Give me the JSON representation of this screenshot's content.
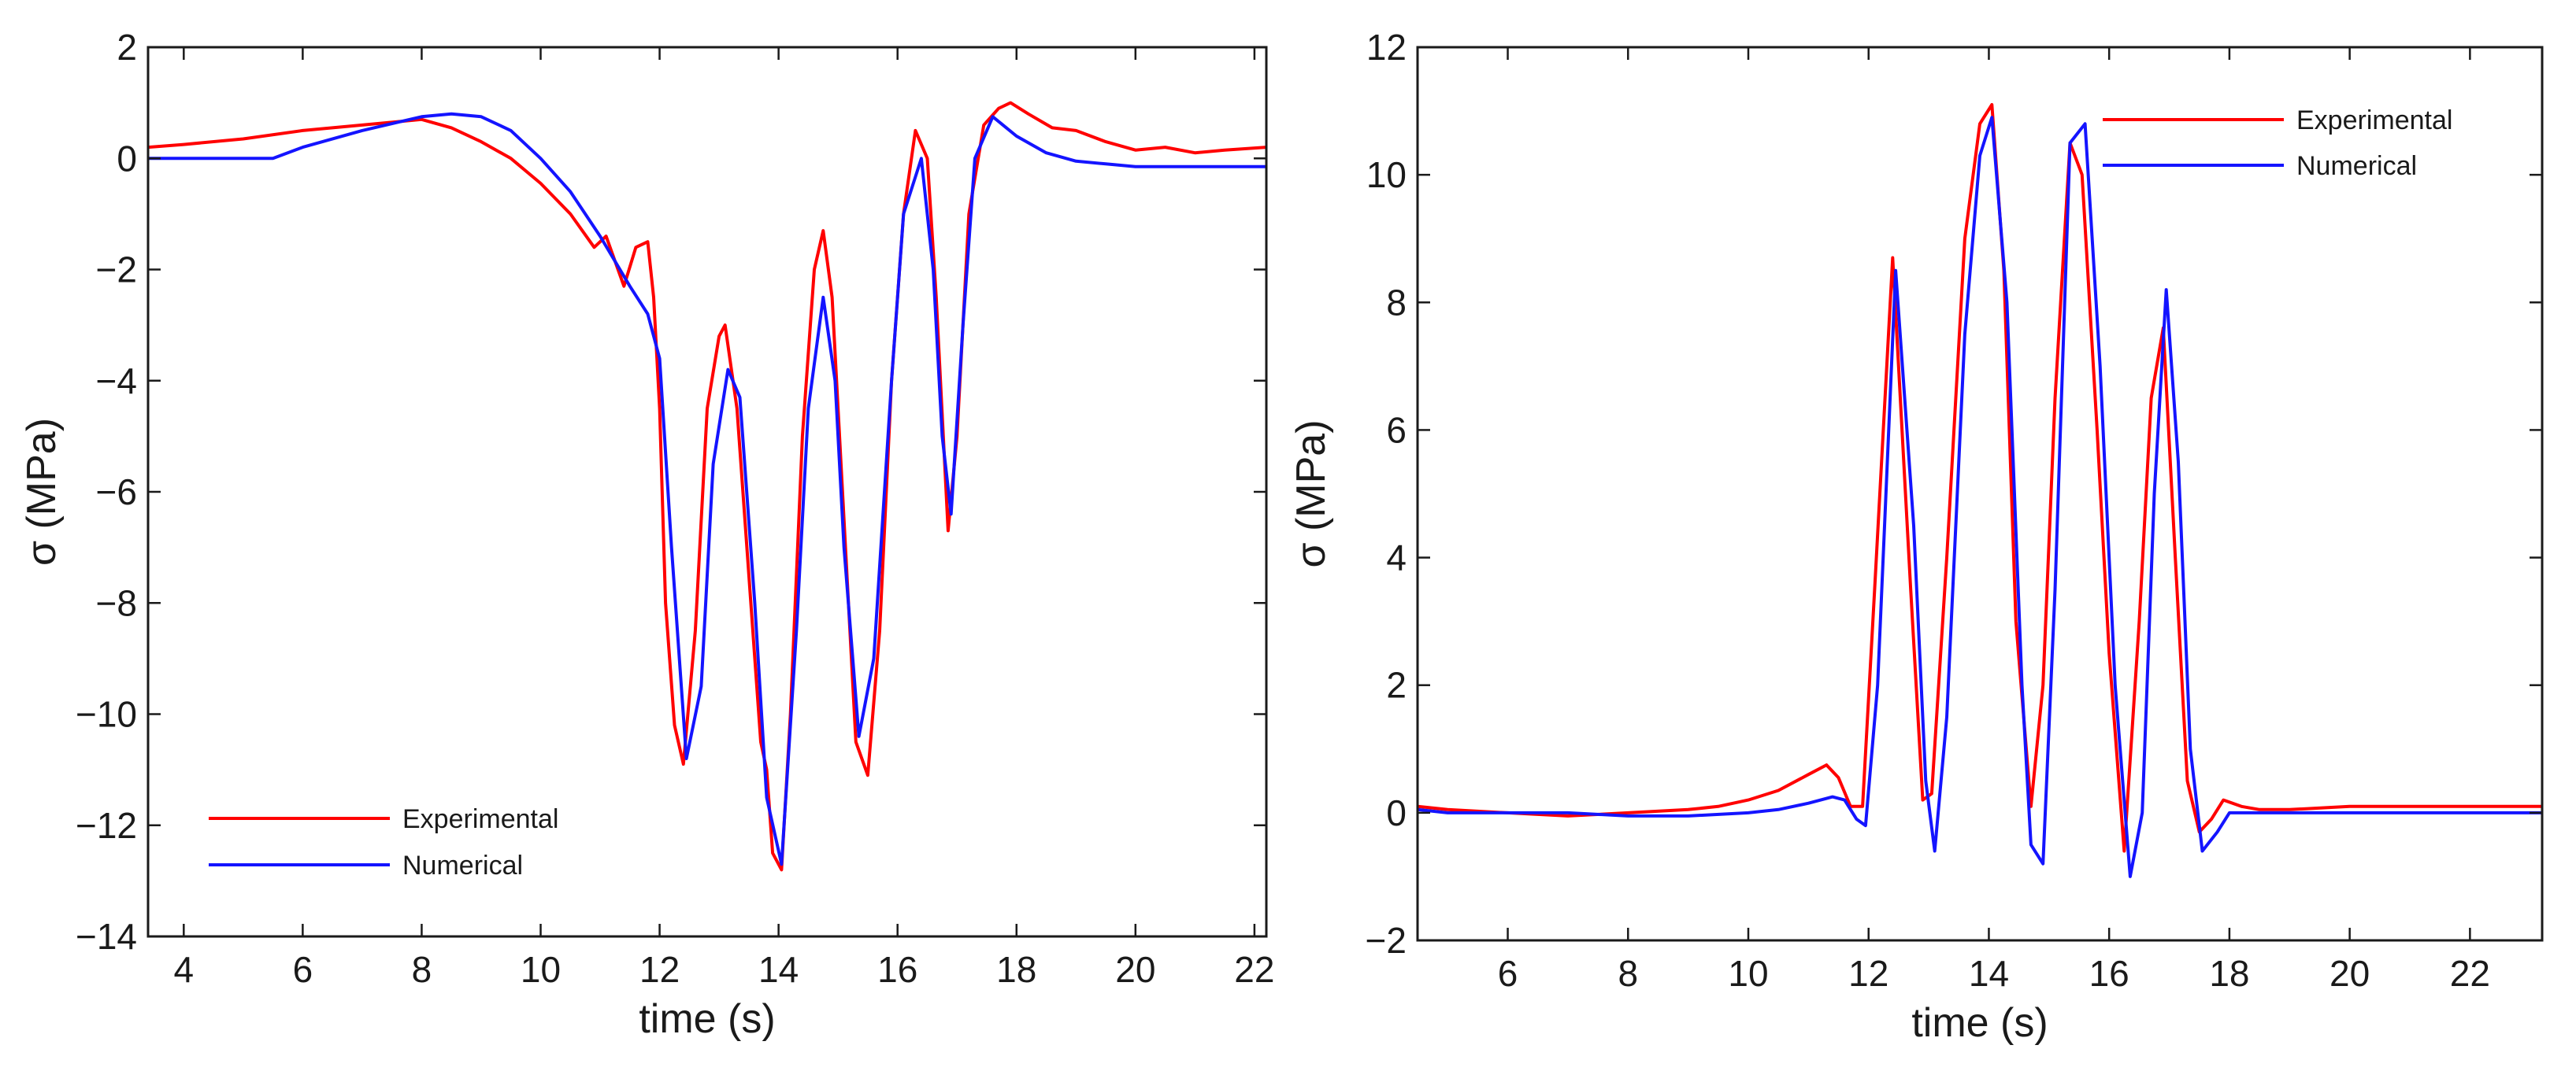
{
  "colors": {
    "experimental": "#ff0000",
    "numerical": "#1414ff"
  },
  "chart_data": [
    {
      "type": "line",
      "xlabel": "time (s)",
      "ylabel": "σ (MPa)",
      "xlim": [
        3.4,
        22.2
      ],
      "ylim": [
        -14,
        2
      ],
      "xticks": [
        4,
        6,
        8,
        10,
        12,
        14,
        16,
        18,
        20,
        22
      ],
      "yticks": [
        -14,
        -12,
        -10,
        -8,
        -6,
        -4,
        -2,
        0,
        2
      ],
      "legend_position": "bottom-left",
      "series": [
        {
          "name": "Experimental",
          "color": "#ff0000",
          "x": [
            3.4,
            4,
            5,
            6,
            7,
            8,
            8.5,
            9,
            9.5,
            10,
            10.5,
            10.9,
            11.1,
            11.4,
            11.6,
            11.8,
            11.9,
            12.0,
            12.1,
            12.25,
            12.4,
            12.6,
            12.8,
            13.0,
            13.1,
            13.3,
            13.5,
            13.7,
            13.8,
            13.9,
            14.05,
            14.2,
            14.4,
            14.6,
            14.75,
            14.9,
            15.1,
            15.3,
            15.5,
            15.7,
            15.9,
            16.1,
            16.3,
            16.5,
            16.65,
            16.85,
            17.0,
            17.2,
            17.45,
            17.7,
            17.9,
            18.2,
            18.6,
            19.0,
            19.5,
            20,
            20.5,
            21,
            21.5,
            22.2
          ],
          "y": [
            0.2,
            0.25,
            0.35,
            0.5,
            0.6,
            0.7,
            0.55,
            0.3,
            0.0,
            -0.45,
            -1.0,
            -1.6,
            -1.4,
            -2.3,
            -1.6,
            -1.5,
            -2.5,
            -4.5,
            -8.0,
            -10.2,
            -10.9,
            -8.5,
            -4.5,
            -3.2,
            -3.0,
            -4.5,
            -7.5,
            -10.5,
            -11.0,
            -12.5,
            -12.8,
            -10.0,
            -5.0,
            -2.0,
            -1.3,
            -2.5,
            -6.5,
            -10.5,
            -11.1,
            -8.5,
            -4.0,
            -1.0,
            0.5,
            0.0,
            -2.5,
            -6.7,
            -5.0,
            -1.0,
            0.6,
            0.9,
            1.0,
            0.8,
            0.55,
            0.5,
            0.3,
            0.15,
            0.2,
            0.1,
            0.15,
            0.2
          ]
        },
        {
          "name": "Numerical",
          "color": "#1414ff",
          "x": [
            3.4,
            4,
            5,
            5.5,
            6,
            7,
            8,
            8.5,
            9,
            9.5,
            10,
            10.5,
            11,
            11.5,
            11.8,
            12.0,
            12.2,
            12.45,
            12.7,
            12.9,
            13.15,
            13.35,
            13.6,
            13.8,
            14.05,
            14.3,
            14.5,
            14.75,
            14.95,
            15.1,
            15.35,
            15.6,
            15.9,
            16.1,
            16.4,
            16.6,
            16.75,
            16.9,
            17.1,
            17.3,
            17.6,
            18,
            18.5,
            19,
            19.5,
            20,
            21,
            22.2
          ],
          "y": [
            0.0,
            0.0,
            0.0,
            0.0,
            0.2,
            0.5,
            0.75,
            0.8,
            0.75,
            0.5,
            0.0,
            -0.6,
            -1.4,
            -2.3,
            -2.8,
            -3.6,
            -7.0,
            -10.8,
            -9.5,
            -5.5,
            -3.8,
            -4.3,
            -8.0,
            -11.5,
            -12.7,
            -8.5,
            -4.5,
            -2.5,
            -4.0,
            -7.0,
            -10.4,
            -9.0,
            -4.0,
            -1.0,
            0.0,
            -2.0,
            -5.0,
            -6.4,
            -3.0,
            0.0,
            0.75,
            0.4,
            0.1,
            -0.05,
            -0.1,
            -0.15,
            -0.15,
            -0.15
          ]
        }
      ]
    },
    {
      "type": "line",
      "xlabel": "time (s)",
      "ylabel": "σ (MPa)",
      "xlim": [
        4.5,
        23.2
      ],
      "ylim": [
        -2,
        12
      ],
      "xticks": [
        6,
        8,
        10,
        12,
        14,
        16,
        18,
        20,
        22
      ],
      "yticks": [
        -2,
        0,
        2,
        4,
        6,
        8,
        10,
        12
      ],
      "legend_position": "top-right",
      "series": [
        {
          "name": "Experimental",
          "color": "#ff0000",
          "x": [
            4.5,
            5,
            6,
            7,
            8,
            9,
            9.5,
            10,
            10.5,
            11,
            11.3,
            11.5,
            11.7,
            11.9,
            12.1,
            12.4,
            12.7,
            12.9,
            13.05,
            13.3,
            13.6,
            13.85,
            14.05,
            14.25,
            14.45,
            14.7,
            14.9,
            15.1,
            15.35,
            15.55,
            15.8,
            16.0,
            16.25,
            16.5,
            16.7,
            16.9,
            17.1,
            17.3,
            17.5,
            17.7,
            17.9,
            18.2,
            18.5,
            19,
            20,
            21,
            22,
            23.2
          ],
          "y": [
            0.1,
            0.05,
            0.0,
            -0.05,
            0.0,
            0.05,
            0.1,
            0.2,
            0.35,
            0.6,
            0.75,
            0.55,
            0.1,
            0.1,
            3.5,
            8.7,
            3.5,
            0.2,
            0.3,
            4.0,
            9.0,
            10.8,
            11.1,
            8.5,
            3.0,
            0.1,
            2.0,
            6.5,
            10.5,
            10.0,
            6.0,
            2.5,
            -0.6,
            3.0,
            6.5,
            7.6,
            4.0,
            0.5,
            -0.3,
            -0.1,
            0.2,
            0.1,
            0.05,
            0.05,
            0.1,
            0.1,
            0.1,
            0.1
          ]
        },
        {
          "name": "Numerical",
          "color": "#1414ff",
          "x": [
            4.5,
            5,
            6,
            7,
            8,
            9,
            10,
            10.5,
            11,
            11.4,
            11.6,
            11.8,
            11.95,
            12.15,
            12.45,
            12.75,
            12.95,
            13.1,
            13.3,
            13.6,
            13.85,
            14.05,
            14.3,
            14.55,
            14.7,
            14.9,
            15.1,
            15.35,
            15.6,
            15.85,
            16.1,
            16.35,
            16.55,
            16.75,
            16.95,
            17.15,
            17.35,
            17.55,
            17.8,
            18,
            18.5,
            19,
            20,
            21,
            22,
            23.2
          ],
          "y": [
            0.05,
            0.0,
            0.0,
            0.0,
            -0.05,
            -0.05,
            0.0,
            0.05,
            0.15,
            0.25,
            0.2,
            -0.1,
            -0.2,
            2.0,
            8.5,
            4.5,
            0.5,
            -0.6,
            1.5,
            7.5,
            10.3,
            10.9,
            8.0,
            2.0,
            -0.5,
            -0.8,
            3.5,
            10.5,
            10.8,
            7.0,
            2.0,
            -1.0,
            0.0,
            5.0,
            8.2,
            5.5,
            1.0,
            -0.6,
            -0.3,
            0.0,
            0.0,
            0.0,
            0.0,
            0.0,
            0.0,
            0.0
          ]
        }
      ]
    }
  ]
}
